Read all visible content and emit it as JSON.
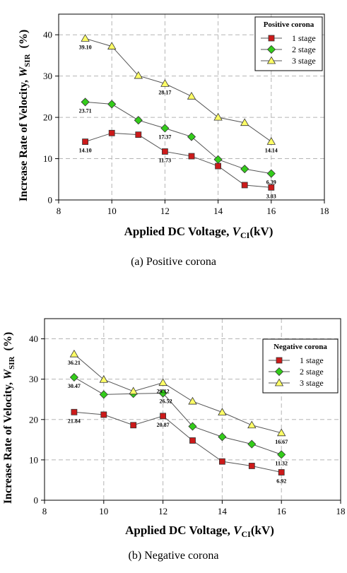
{
  "chart_data": [
    {
      "type": "line",
      "panel": "a",
      "caption": "(a)  Positive  corona",
      "xlabel": "Applied DC Voltage, V",
      "xlabel_sub": "CI",
      "xlabel_unit": "(kV)",
      "ylabel": "Increase Rate of  Velocity, W",
      "ylabel_sub": "SIR",
      "ylabel_unit": "(%)",
      "xlim": [
        8,
        18
      ],
      "ylim": [
        0,
        45
      ],
      "xticks": [
        8,
        10,
        12,
        14,
        16,
        18
      ],
      "yticks": [
        0,
        10,
        20,
        30,
        40
      ],
      "grid": true,
      "legend_title": "Positive corona",
      "legend_position": "top-right",
      "x": [
        9,
        10,
        11,
        12,
        13,
        14,
        15,
        16
      ],
      "series": [
        {
          "name": "1 stage",
          "marker": "square",
          "color": "#cc1a1a",
          "values": [
            14.1,
            16.2,
            15.8,
            11.73,
            10.6,
            8.2,
            3.6,
            3.03
          ]
        },
        {
          "name": "2 stage",
          "marker": "diamond",
          "color": "#33cc1a",
          "values": [
            23.71,
            23.2,
            19.3,
            17.37,
            15.3,
            9.8,
            7.5,
            6.39
          ]
        },
        {
          "name": "3 stage",
          "marker": "triangle",
          "color": "#ffff66",
          "values": [
            39.1,
            37.2,
            30.1,
            28.17,
            25.1,
            20.0,
            18.7,
            14.14
          ]
        }
      ],
      "annotations": [
        {
          "x": 9,
          "y": 39.1,
          "text": "39.10",
          "pos": "below"
        },
        {
          "x": 9,
          "y": 23.71,
          "text": "23.71",
          "pos": "below"
        },
        {
          "x": 9,
          "y": 14.1,
          "text": "14.10",
          "pos": "below"
        },
        {
          "x": 12,
          "y": 28.17,
          "text": "28.17",
          "pos": "below"
        },
        {
          "x": 12,
          "y": 17.37,
          "text": "17.37",
          "pos": "below"
        },
        {
          "x": 12,
          "y": 11.73,
          "text": "11.73",
          "pos": "below"
        },
        {
          "x": 16,
          "y": 14.14,
          "text": "14.14",
          "pos": "below"
        },
        {
          "x": 16,
          "y": 6.39,
          "text": "6.39",
          "pos": "below"
        },
        {
          "x": 16,
          "y": 3.03,
          "text": "3.03",
          "pos": "below"
        }
      ]
    },
    {
      "type": "line",
      "panel": "b",
      "caption": "(b)  Negative  corona",
      "xlabel": "Applied DC Voltage, V",
      "xlabel_sub": "CI",
      "xlabel_unit": "(kV)",
      "ylabel": "Increase Rate of  Velocity, W",
      "ylabel_sub": "SIR",
      "ylabel_unit": "(%)",
      "xlim": [
        8,
        18
      ],
      "ylim": [
        0,
        45
      ],
      "xticks": [
        8,
        10,
        12,
        14,
        16,
        18
      ],
      "yticks": [
        0,
        10,
        20,
        30,
        40
      ],
      "grid": true,
      "legend_title": "Negative corona",
      "legend_position": "top-right",
      "x": [
        9,
        10,
        11,
        12,
        13,
        14,
        15,
        16
      ],
      "series": [
        {
          "name": "1 stage",
          "marker": "square",
          "color": "#cc1a1a",
          "values": [
            21.84,
            21.2,
            18.6,
            20.87,
            14.8,
            9.6,
            8.5,
            6.92
          ]
        },
        {
          "name": "2 stage",
          "marker": "diamond",
          "color": "#33cc1a",
          "values": [
            30.47,
            26.2,
            26.4,
            26.52,
            18.3,
            15.7,
            13.9,
            11.32
          ]
        },
        {
          "name": "3 stage",
          "marker": "triangle",
          "color": "#ffff66",
          "values": [
            36.21,
            29.9,
            27.0,
            29.12,
            24.5,
            21.8,
            18.6,
            16.67
          ]
        }
      ],
      "annotations": [
        {
          "x": 9,
          "y": 36.21,
          "text": "36.21",
          "pos": "below"
        },
        {
          "x": 9,
          "y": 30.47,
          "text": "30.47",
          "pos": "below"
        },
        {
          "x": 9,
          "y": 21.84,
          "text": "21.84",
          "pos": "below"
        },
        {
          "x": 12,
          "y": 29.12,
          "text": "29.12",
          "pos": "below"
        },
        {
          "x": 12,
          "y": 26.52,
          "text": "26.52",
          "pos": "right"
        },
        {
          "x": 12,
          "y": 20.87,
          "text": "20.87",
          "pos": "below"
        },
        {
          "x": 16,
          "y": 16.67,
          "text": "16.67",
          "pos": "below"
        },
        {
          "x": 16,
          "y": 11.32,
          "text": "11.32",
          "pos": "below"
        },
        {
          "x": 16,
          "y": 6.92,
          "text": "6.92",
          "pos": "below"
        }
      ]
    }
  ]
}
